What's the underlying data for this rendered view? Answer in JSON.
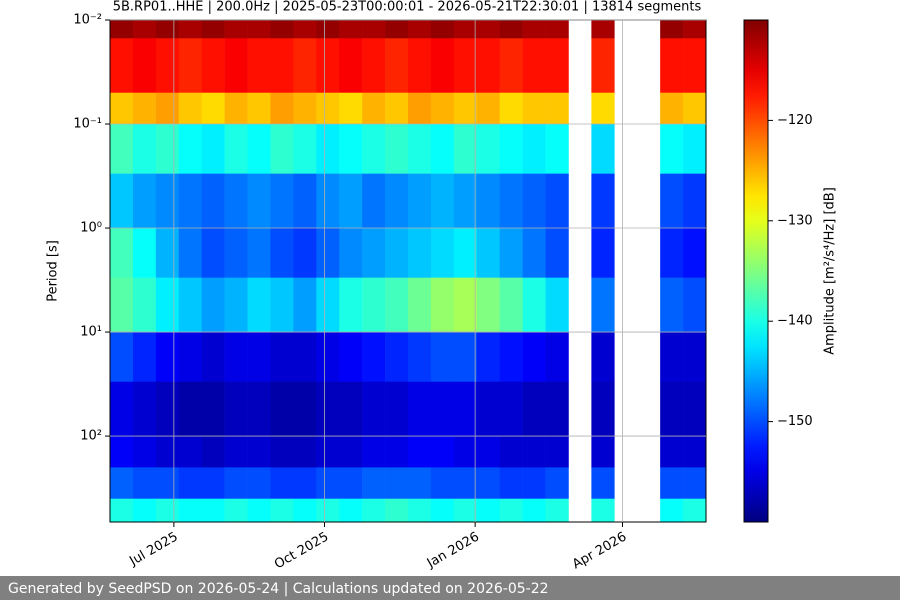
{
  "chart_data": {
    "type": "heatmap",
    "title": "5B.RP01..HHE | 200.0Hz | 2025-05-23T00:00:01 - 2026-05-21T22:30:01 | 13814 segments",
    "ylabel": "Period [s]",
    "colorbar_label": "Amplitude [m²/s⁴/Hz] [dB]",
    "footer": "Generated by SeedPSD on 2026-05-24 | Calculations updated on 2026-05-22",
    "colormap": "jet",
    "yscale": "log",
    "yinvert": true,
    "grid": true,
    "xlim": [
      "2025-05-23",
      "2026-05-22"
    ],
    "xticks": [
      {
        "value": "2025-07-01",
        "label": "Jul 2025"
      },
      {
        "value": "2025-10-01",
        "label": "Oct 2025"
      },
      {
        "value": "2026-01-01",
        "label": "Jan 2026"
      },
      {
        "value": "2026-04-01",
        "label": "Apr 2026"
      }
    ],
    "ylim": [
      0.01,
      670
    ],
    "yticks": [
      {
        "value": 0.01,
        "label": "10⁻²"
      },
      {
        "value": 0.1,
        "label": "10⁻¹"
      },
      {
        "value": 1,
        "label": "10⁰"
      },
      {
        "value": 10,
        "label": "10¹"
      },
      {
        "value": 100,
        "label": "10²"
      }
    ],
    "clim": [
      -160,
      -110
    ],
    "cticks": [
      {
        "value": -120,
        "label": "−120"
      },
      {
        "value": -130,
        "label": "−130"
      },
      {
        "value": -140,
        "label": "−140"
      },
      {
        "value": -150,
        "label": "−150"
      }
    ],
    "x_edges": [
      "2025-05-23",
      "2025-06-06",
      "2025-06-20",
      "2025-07-04",
      "2025-07-18",
      "2025-08-01",
      "2025-08-15",
      "2025-08-29",
      "2025-09-12",
      "2025-09-26",
      "2025-10-10",
      "2025-10-24",
      "2025-11-07",
      "2025-11-21",
      "2025-12-05",
      "2025-12-19",
      "2026-01-02",
      "2026-01-16",
      "2026-01-30",
      "2026-02-13",
      "2026-02-27",
      "2026-03-13",
      "2026-03-27",
      "2026-04-10",
      "2026-04-24",
      "2026-05-08",
      "2026-05-22"
    ],
    "y_edges": [
      0.01,
      0.015,
      0.05,
      0.1,
      0.3,
      1,
      3,
      10,
      30,
      100,
      200,
      400,
      670
    ],
    "values": [
      [
        -111,
        -112,
        -111,
        -112,
        -111,
        -112,
        -112,
        -111,
        -112,
        -111,
        -112,
        -112,
        -111,
        -112,
        -111,
        -112,
        -112,
        -111,
        -112,
        -112,
        null,
        -112,
        null,
        null,
        -111,
        -112
      ],
      [
        -117,
        -116,
        -117,
        -118,
        -117,
        -116,
        -117,
        -117,
        -118,
        -117,
        -116,
        -117,
        -118,
        -117,
        -116,
        -117,
        -117,
        -118,
        -117,
        -117,
        null,
        -118,
        null,
        null,
        -117,
        -117
      ],
      [
        -126,
        -125,
        -124,
        -126,
        -127,
        -125,
        -126,
        -124,
        -125,
        -126,
        -127,
        -125,
        -126,
        -124,
        -125,
        -126,
        -125,
        -127,
        -126,
        -126,
        null,
        -127,
        null,
        null,
        -125,
        -126
      ],
      [
        -138,
        -140,
        -139,
        -141,
        -142,
        -140,
        -141,
        -139,
        -140,
        -142,
        -141,
        -140,
        -139,
        -140,
        -141,
        -139,
        -140,
        -141,
        -142,
        -141,
        null,
        -143,
        null,
        null,
        -141,
        -142
      ],
      [
        -144,
        -146,
        -147,
        -148,
        -149,
        -148,
        -147,
        -148,
        -149,
        -147,
        -146,
        -148,
        -147,
        -146,
        -145,
        -146,
        -147,
        -148,
        -149,
        -150,
        null,
        -151,
        null,
        null,
        -150,
        -151
      ],
      [
        -138,
        -141,
        -145,
        -148,
        -150,
        -149,
        -148,
        -150,
        -151,
        -149,
        -147,
        -146,
        -145,
        -144,
        -143,
        -142,
        -144,
        -146,
        -148,
        -150,
        null,
        -152,
        null,
        null,
        -152,
        -153
      ],
      [
        -137,
        -139,
        -142,
        -144,
        -146,
        -145,
        -143,
        -144,
        -146,
        -143,
        -140,
        -139,
        -138,
        -136,
        -134,
        -133,
        -135,
        -137,
        -140,
        -143,
        null,
        -148,
        null,
        null,
        -149,
        -150
      ],
      [
        -150,
        -152,
        -154,
        -155,
        -156,
        -155,
        -155,
        -156,
        -156,
        -155,
        -154,
        -153,
        -152,
        -151,
        -150,
        -150,
        -152,
        -153,
        -154,
        -155,
        null,
        -156,
        null,
        null,
        -156,
        -156
      ],
      [
        -155,
        -156,
        -157,
        -158,
        -158,
        -157,
        -157,
        -158,
        -158,
        -157,
        -157,
        -156,
        -156,
        -155,
        -155,
        -155,
        -156,
        -156,
        -157,
        -157,
        null,
        -157,
        null,
        null,
        -157,
        -157
      ],
      [
        -154,
        -155,
        -156,
        -156,
        -157,
        -156,
        -156,
        -157,
        -157,
        -156,
        -156,
        -155,
        -155,
        -154,
        -154,
        -155,
        -155,
        -156,
        -156,
        -156,
        null,
        -156,
        null,
        null,
        -156,
        -156
      ],
      [
        -149,
        -150,
        -150,
        -151,
        -151,
        -150,
        -150,
        -151,
        -151,
        -150,
        -150,
        -149,
        -149,
        -149,
        -150,
        -150,
        -150,
        -151,
        -151,
        -150,
        null,
        -150,
        null,
        null,
        -150,
        -150
      ],
      [
        -140,
        -141,
        -140,
        -141,
        -141,
        -140,
        -141,
        -140,
        -141,
        -140,
        -141,
        -140,
        -139,
        -140,
        -141,
        -140,
        -141,
        -140,
        -141,
        -140,
        null,
        -140,
        null,
        null,
        -141,
        -140
      ]
    ]
  }
}
